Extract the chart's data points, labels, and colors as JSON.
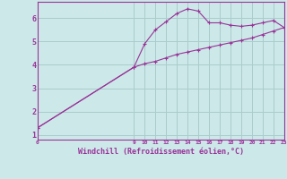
{
  "xlabel": "Windchill (Refroidissement éolien,°C)",
  "background_color": "#cce8e8",
  "grid_color": "#aacccc",
  "line_color": "#993399",
  "xlim": [
    0,
    23
  ],
  "ylim": [
    0.8,
    6.7
  ],
  "xticks": [
    0,
    9,
    10,
    11,
    12,
    13,
    14,
    15,
    16,
    17,
    18,
    19,
    20,
    21,
    22,
    23
  ],
  "yticks": [
    1,
    2,
    3,
    4,
    5,
    6
  ],
  "windchill_x": [
    0,
    9,
    10,
    11,
    12,
    13,
    14,
    15,
    16,
    17,
    18,
    19,
    20,
    21,
    22,
    23
  ],
  "windchill_y": [
    1.3,
    3.9,
    4.9,
    5.5,
    5.85,
    6.2,
    6.4,
    6.3,
    5.8,
    5.8,
    5.7,
    5.65,
    5.7,
    5.8,
    5.9,
    5.6
  ],
  "temp_x": [
    0,
    9,
    10,
    11,
    12,
    13,
    14,
    15,
    16,
    17,
    18,
    19,
    20,
    21,
    22,
    23
  ],
  "temp_y": [
    1.3,
    3.9,
    4.05,
    4.15,
    4.3,
    4.45,
    4.55,
    4.65,
    4.75,
    4.85,
    4.95,
    5.05,
    5.15,
    5.3,
    5.45,
    5.6
  ]
}
